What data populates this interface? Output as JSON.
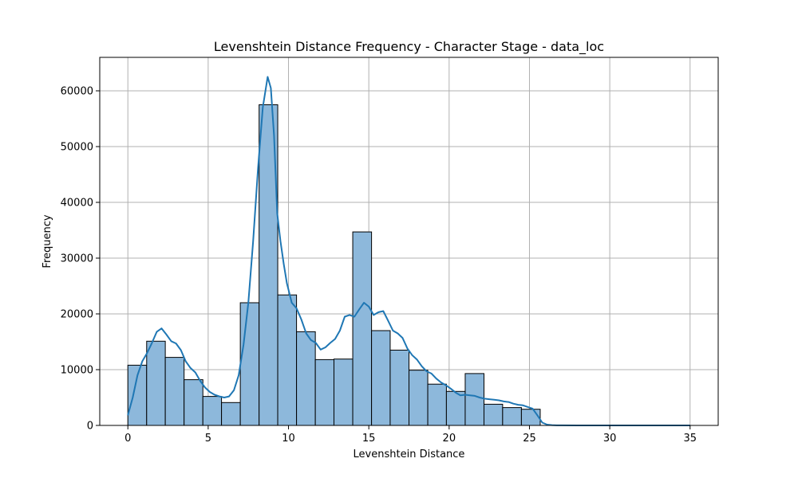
{
  "chart_data": {
    "type": "bar",
    "title": "Levenshtein Distance Frequency - Character Stage - data_loc",
    "xlabel": "Levenshtein Distance",
    "ylabel": "Frequency",
    "xlim": [
      -1.75,
      36.75
    ],
    "ylim": [
      0,
      66000
    ],
    "grid": true,
    "bar_color": "#8db8db",
    "bar_edge_color": "#000000",
    "kde_color": "#1f77b4",
    "x_ticks": [
      0,
      5,
      10,
      15,
      20,
      25,
      30,
      35
    ],
    "x_tick_labels": [
      "0",
      "5",
      "10",
      "15",
      "20",
      "25",
      "30",
      "35"
    ],
    "y_ticks": [
      0,
      10000,
      20000,
      30000,
      40000,
      50000,
      60000
    ],
    "y_tick_labels": [
      "0",
      "10000",
      "20000",
      "30000",
      "40000",
      "50000",
      "60000"
    ],
    "bins": [
      {
        "x0": 0.0,
        "x1": 1.17,
        "value": 10800
      },
      {
        "x0": 1.17,
        "x1": 2.33,
        "value": 15100
      },
      {
        "x0": 2.33,
        "x1": 3.5,
        "value": 12200
      },
      {
        "x0": 3.5,
        "x1": 4.67,
        "value": 8200
      },
      {
        "x0": 4.67,
        "x1": 5.83,
        "value": 5200
      },
      {
        "x0": 5.83,
        "x1": 7.0,
        "value": 4100
      },
      {
        "x0": 7.0,
        "x1": 8.17,
        "value": 22000
      },
      {
        "x0": 8.17,
        "x1": 9.33,
        "value": 57500
      },
      {
        "x0": 9.33,
        "x1": 10.5,
        "value": 23400
      },
      {
        "x0": 10.5,
        "x1": 11.67,
        "value": 16800
      },
      {
        "x0": 11.67,
        "x1": 12.83,
        "value": 11800
      },
      {
        "x0": 12.83,
        "x1": 14.0,
        "value": 11900
      },
      {
        "x0": 14.0,
        "x1": 15.17,
        "value": 34700
      },
      {
        "x0": 15.17,
        "x1": 16.33,
        "value": 17000
      },
      {
        "x0": 16.33,
        "x1": 17.5,
        "value": 13500
      },
      {
        "x0": 17.5,
        "x1": 18.67,
        "value": 9900
      },
      {
        "x0": 18.67,
        "x1": 19.83,
        "value": 7400
      },
      {
        "x0": 19.83,
        "x1": 21.0,
        "value": 6100
      },
      {
        "x0": 21.0,
        "x1": 22.17,
        "value": 9300
      },
      {
        "x0": 22.17,
        "x1": 23.33,
        "value": 3800
      },
      {
        "x0": 23.33,
        "x1": 24.5,
        "value": 3200
      },
      {
        "x0": 24.5,
        "x1": 25.67,
        "value": 2900
      },
      {
        "x0": 25.67,
        "x1": 26.83,
        "value": 0
      },
      {
        "x0": 26.83,
        "x1": 28.0,
        "value": 0
      },
      {
        "x0": 28.0,
        "x1": 29.17,
        "value": 0
      },
      {
        "x0": 29.17,
        "x1": 30.33,
        "value": 0
      },
      {
        "x0": 30.33,
        "x1": 31.5,
        "value": 0
      },
      {
        "x0": 31.5,
        "x1": 32.67,
        "value": 0
      },
      {
        "x0": 32.67,
        "x1": 33.83,
        "value": 0
      },
      {
        "x0": 33.83,
        "x1": 35.0,
        "value": 0
      }
    ],
    "kde": {
      "x": [
        0,
        0.3,
        0.6,
        0.9,
        1.2,
        1.5,
        1.8,
        2.1,
        2.4,
        2.7,
        3.0,
        3.3,
        3.6,
        3.9,
        4.2,
        4.5,
        4.8,
        5.1,
        5.4,
        5.7,
        6.0,
        6.3,
        6.6,
        6.9,
        7.2,
        7.5,
        7.8,
        8.1,
        8.4,
        8.7,
        8.9,
        9.1,
        9.3,
        9.5,
        9.7,
        9.9,
        10.2,
        10.5,
        10.8,
        11.1,
        11.4,
        11.7,
        12.0,
        12.3,
        12.6,
        12.9,
        13.2,
        13.5,
        13.8,
        14.1,
        14.4,
        14.7,
        15.0,
        15.3,
        15.6,
        15.9,
        16.2,
        16.5,
        16.8,
        17.1,
        17.4,
        17.7,
        18.0,
        18.3,
        18.6,
        18.9,
        19.2,
        19.5,
        19.8,
        20.1,
        20.4,
        20.7,
        21.0,
        21.3,
        21.6,
        21.9,
        22.2,
        22.5,
        22.8,
        23.1,
        23.4,
        23.7,
        24.0,
        24.3,
        24.6,
        24.9,
        25.2,
        25.5,
        25.8,
        26.1,
        26.4,
        26.7,
        27.0,
        28.0,
        30.0,
        32.0,
        35.0
      ],
      "y": [
        1800,
        5000,
        9000,
        11500,
        13000,
        14800,
        16800,
        17400,
        16300,
        15100,
        14700,
        13500,
        11500,
        10300,
        9500,
        8000,
        6800,
        6000,
        5500,
        5200,
        5000,
        5200,
        6300,
        9000,
        14500,
        22000,
        33000,
        46000,
        57000,
        62500,
        60500,
        52000,
        38000,
        33000,
        29000,
        25500,
        22000,
        21000,
        19000,
        16500,
        15300,
        14800,
        13600,
        14000,
        14800,
        15500,
        17000,
        19500,
        19800,
        19500,
        20800,
        22000,
        21300,
        19800,
        20300,
        20500,
        18800,
        17000,
        16500,
        15700,
        13800,
        12600,
        11800,
        10600,
        9700,
        9300,
        8400,
        7700,
        7200,
        6600,
        5900,
        5400,
        5500,
        5400,
        5300,
        5000,
        4800,
        4700,
        4600,
        4500,
        4300,
        4200,
        3900,
        3700,
        3600,
        3300,
        3000,
        1800,
        500,
        150,
        50,
        20,
        10,
        5,
        3,
        2,
        1
      ]
    }
  }
}
